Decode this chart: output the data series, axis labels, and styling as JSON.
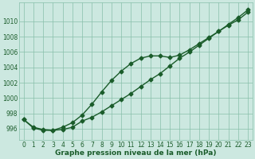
{
  "title": "Graphe pression niveau de la mer (hPa)",
  "background_color": "#cce8e0",
  "plot_background": "#cce8e0",
  "grid_color": "#88bfaa",
  "line_color": "#1a5c2a",
  "x_ticks": [
    0,
    1,
    2,
    3,
    4,
    5,
    6,
    7,
    8,
    9,
    10,
    11,
    12,
    13,
    14,
    15,
    16,
    17,
    18,
    19,
    20,
    21,
    22,
    23
  ],
  "xlim": [
    -0.5,
    23.5
  ],
  "ylim": [
    994.5,
    1012.5
  ],
  "yticks": [
    996,
    998,
    1000,
    1002,
    1004,
    1006,
    1008,
    1010
  ],
  "line1_x": [
    0,
    1,
    2,
    3,
    4,
    5,
    6,
    7,
    8,
    9,
    10,
    11,
    12,
    13,
    14,
    15,
    16,
    17,
    18,
    19,
    20,
    21,
    22,
    23
  ],
  "line1_y": [
    997.2,
    996.1,
    995.8,
    995.8,
    996.2,
    996.8,
    997.8,
    999.2,
    1000.8,
    1002.3,
    1003.5,
    1004.5,
    1005.2,
    1005.5,
    1005.5,
    1005.3,
    1005.6,
    1006.3,
    1007.1,
    1007.9,
    1008.7,
    1009.5,
    1010.2,
    1011.2
  ],
  "line2_x": [
    0,
    1,
    2,
    3,
    4,
    5,
    6,
    7,
    8,
    9,
    10,
    11,
    12,
    13,
    14,
    15,
    16,
    17,
    18,
    19,
    20,
    21,
    22,
    23
  ],
  "line2_y": [
    997.2,
    996.2,
    995.9,
    995.8,
    995.9,
    996.2,
    997.0,
    997.5,
    998.2,
    999.0,
    999.8,
    1000.6,
    1001.5,
    1002.4,
    1003.2,
    1004.2,
    1005.2,
    1006.0,
    1006.9,
    1007.8,
    1008.7,
    1009.6,
    1010.5,
    1011.5
  ],
  "marker": "D",
  "marker_size": 2.5,
  "linewidth": 1.0,
  "tick_fontsize": 5.5,
  "title_fontsize": 6.5
}
